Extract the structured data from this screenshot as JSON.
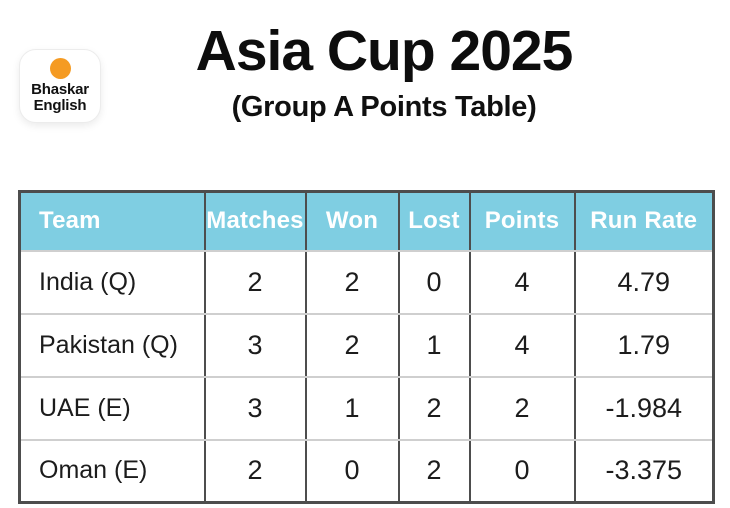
{
  "logo": {
    "line1": "Bhaskar",
    "line2": "English"
  },
  "header": {
    "title": "Asia Cup 2025",
    "subtitle": "(Group A Points Table)"
  },
  "colors": {
    "accent_orange": "#F59B23",
    "header_bg": "#7FCEE2",
    "header_text": "#FFFFFF",
    "border_dark": "#4D4D4D",
    "border_light": "#CFCFCF"
  },
  "table": {
    "columns": [
      "Team",
      "Matches",
      "Won",
      "Lost",
      "Points",
      "Run Rate"
    ],
    "rows": [
      {
        "team": "India (Q)",
        "matches": "2",
        "won": "2",
        "lost": "0",
        "points": "4",
        "run_rate": "4.79"
      },
      {
        "team": "Pakistan (Q)",
        "matches": "3",
        "won": "2",
        "lost": "1",
        "points": "4",
        "run_rate": "1.79"
      },
      {
        "team": "UAE (E)",
        "matches": "3",
        "won": "1",
        "lost": "2",
        "points": "2",
        "run_rate": "-1.984"
      },
      {
        "team": "Oman (E)",
        "matches": "2",
        "won": "0",
        "lost": "2",
        "points": "0",
        "run_rate": "-3.375"
      }
    ]
  },
  "chart_data": {
    "type": "table",
    "title": "Asia Cup 2025 (Group A Points Table)",
    "columns": [
      "Team",
      "Matches",
      "Won",
      "Lost",
      "Points",
      "Run Rate"
    ],
    "rows": [
      [
        "India (Q)",
        2,
        2,
        0,
        4,
        4.79
      ],
      [
        "Pakistan (Q)",
        3,
        2,
        1,
        4,
        1.79
      ],
      [
        "UAE (E)",
        3,
        1,
        2,
        2,
        -1.984
      ],
      [
        "Oman (E)",
        2,
        0,
        2,
        0,
        -3.375
      ]
    ]
  }
}
